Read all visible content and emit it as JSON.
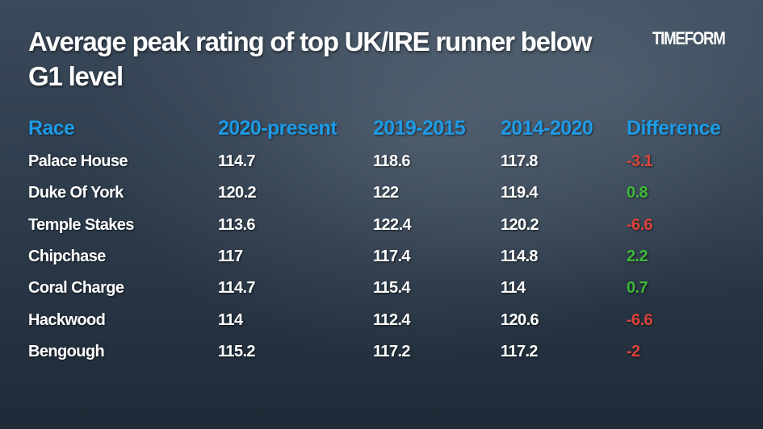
{
  "title": "Average peak rating of top UK/IRE runner below G1 level",
  "logo": "TIMEFORM",
  "colors": {
    "header": "#1e9be6",
    "negative": "#d9443a",
    "positive": "#3fb83a"
  },
  "chart_data": {
    "type": "table",
    "title": "Average peak rating of top UK/IRE runner below G1 level",
    "columns": [
      "Race",
      "2020-present",
      "2019-2015",
      "2014-2020",
      "Difference"
    ],
    "rows": [
      [
        "Palace House",
        "114.7",
        "118.6",
        "117.8",
        "-3.1"
      ],
      [
        "Duke Of York",
        "120.2",
        "122",
        "119.4",
        "0.8"
      ],
      [
        "Temple Stakes",
        "113.6",
        "122.4",
        "120.2",
        "-6.6"
      ],
      [
        "Chipchase",
        "117",
        "117.4",
        "114.8",
        "2.2"
      ],
      [
        "Coral Charge",
        "114.7",
        "115.4",
        "114",
        "0.7"
      ],
      [
        "Hackwood",
        "114",
        "112.4",
        "120.6",
        "-6.6"
      ],
      [
        "Bengough",
        "115.2",
        "117.2",
        "117.2",
        "-2"
      ]
    ]
  }
}
